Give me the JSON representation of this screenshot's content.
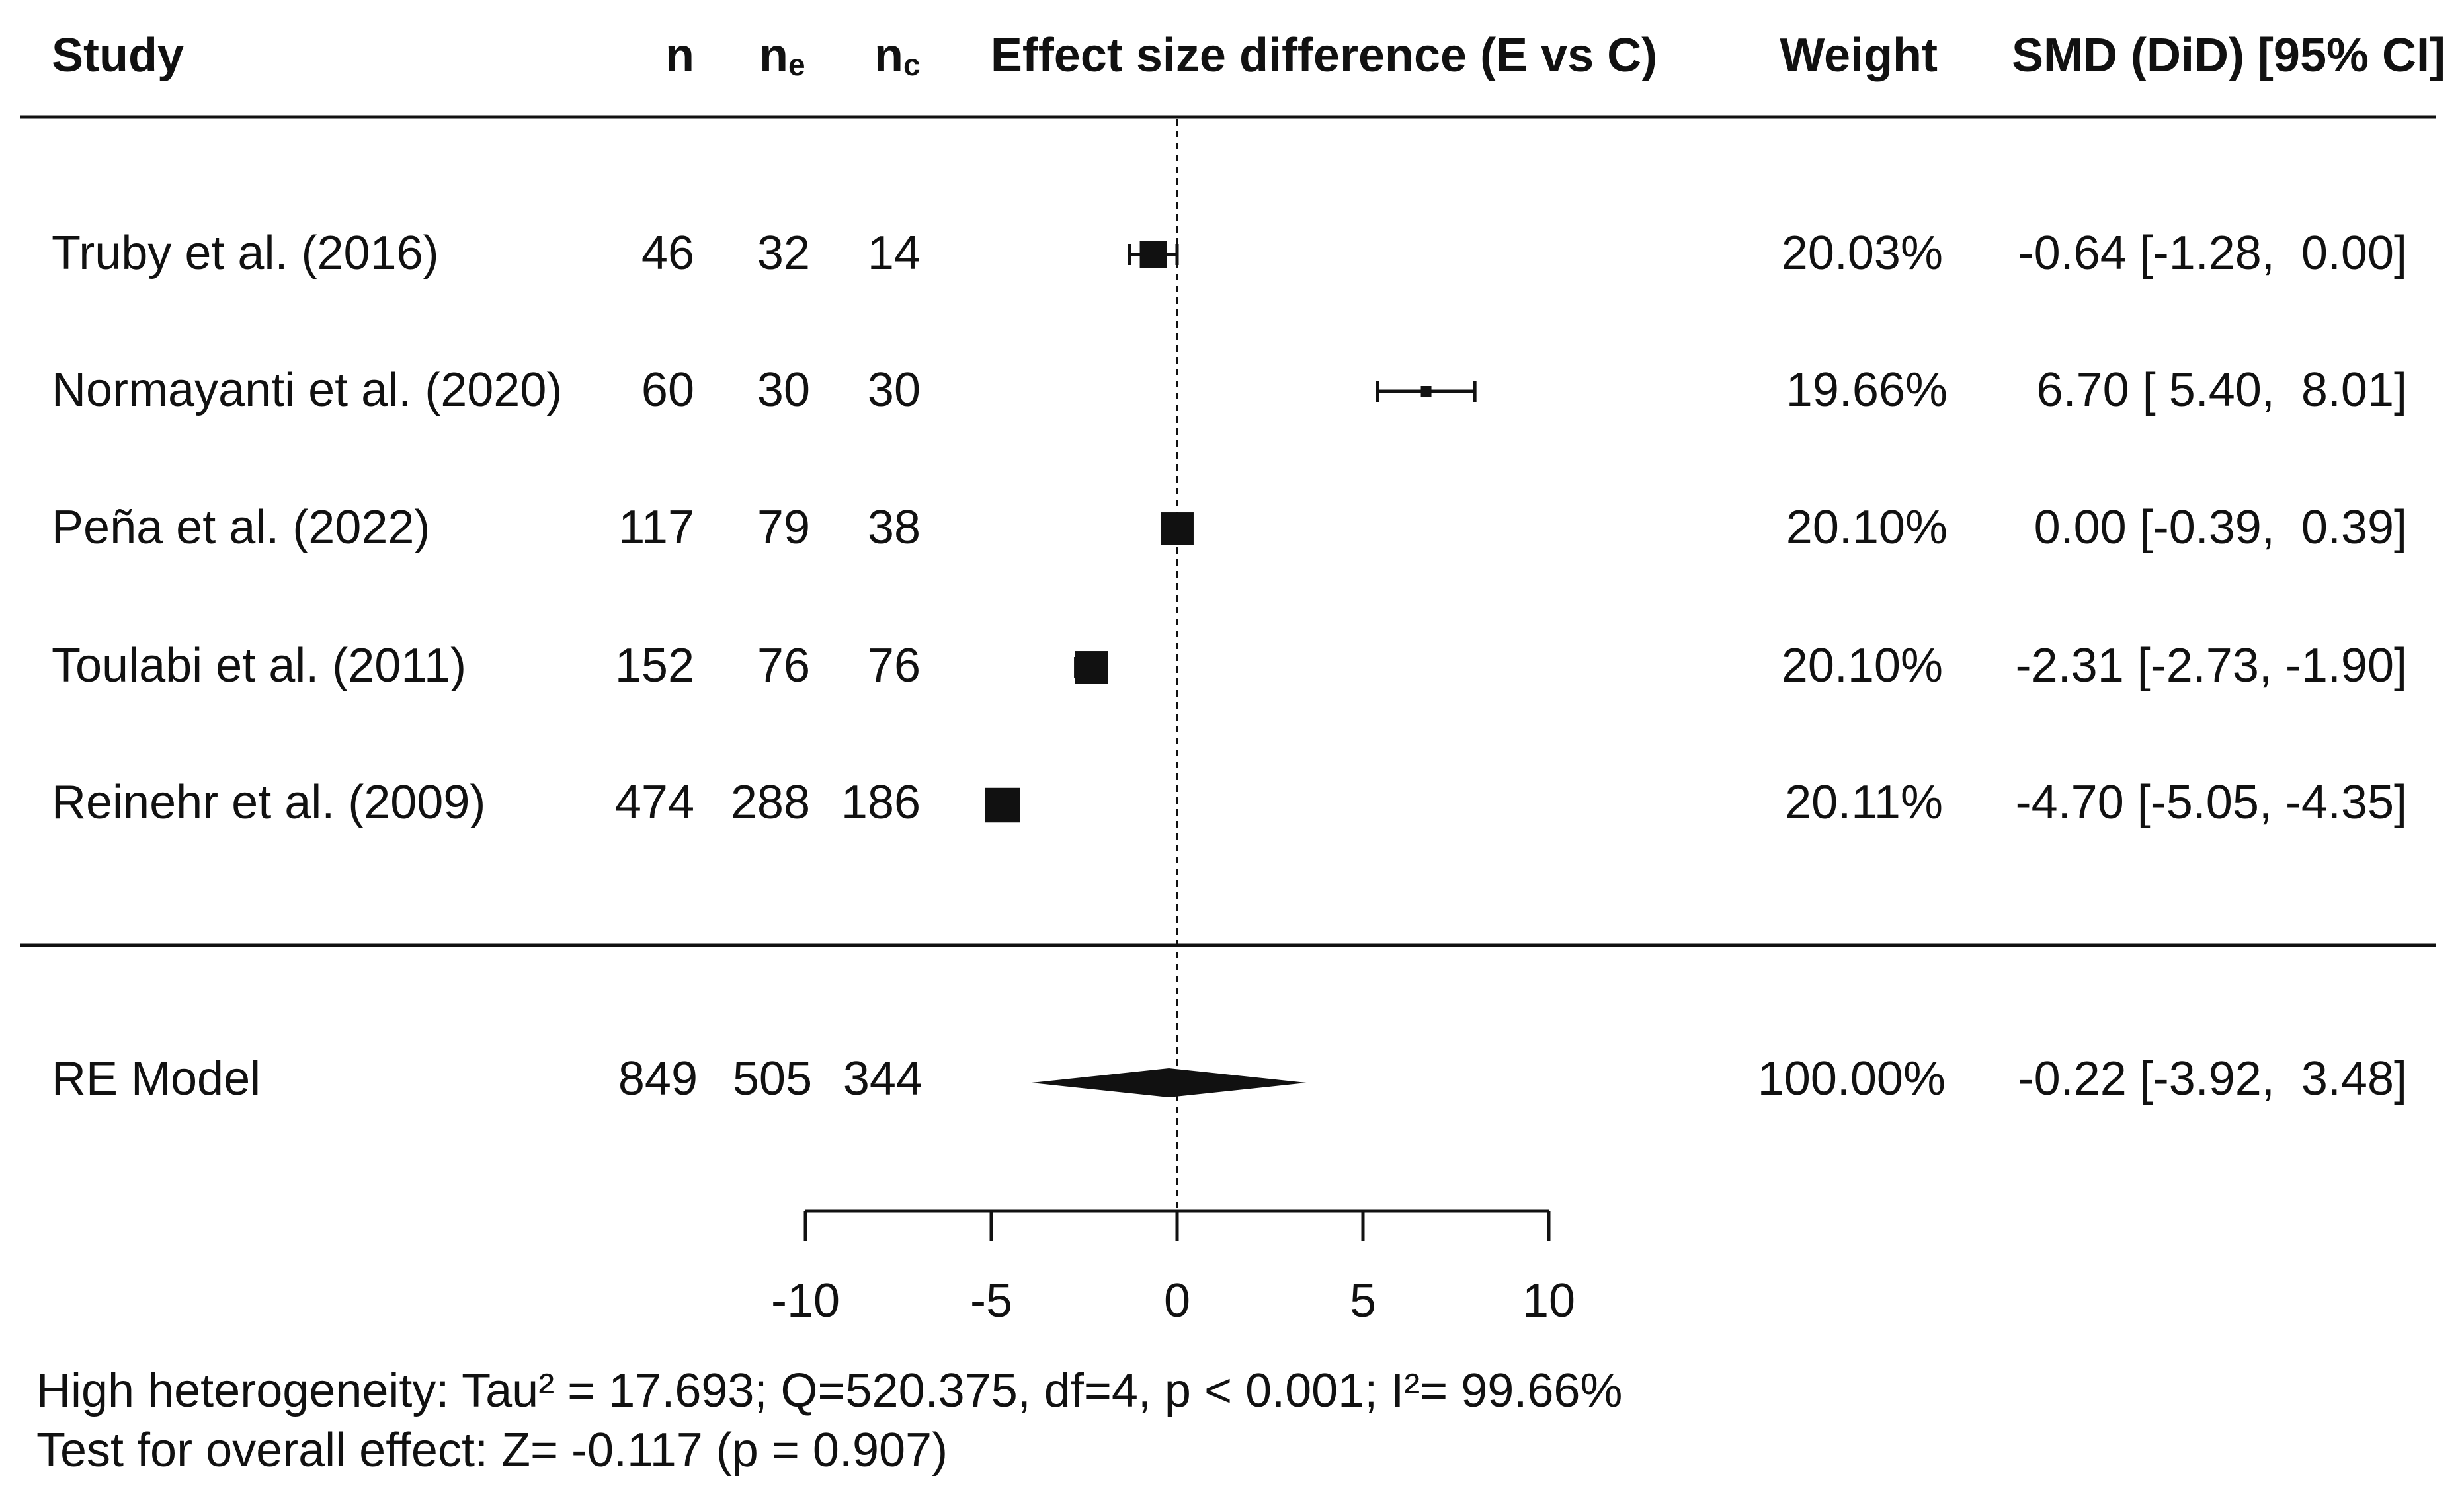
{
  "headers": {
    "study": "Study",
    "n": "n",
    "ne_main": "n",
    "ne_sub": "e",
    "nc_main": "n",
    "nc_sub": "c",
    "effect": "Effect size difference (E vs C)",
    "weight": "Weight",
    "smd": "SMD (DiD) [95% CI]"
  },
  "colors": {
    "ink": "#111111",
    "background": "#ffffff"
  },
  "chart_data": {
    "type": "forest",
    "title": "",
    "xlabel": "Effect size difference (E vs C)",
    "xlim": [
      -10,
      10
    ],
    "xticks": [
      -10,
      -5,
      0,
      5,
      10
    ],
    "xtick_labels": [
      "-10",
      "-5",
      "0",
      "5",
      "10"
    ],
    "reference_line": 0,
    "studies": [
      {
        "study": "Truby et al. (2016)",
        "n": "46",
        "ne": "32",
        "nc": "14",
        "weight": "20.03%",
        "ci_text": "-0.64 [-1.28,  0.00]",
        "est": -0.64,
        "lo": -1.28,
        "hi": 0.0,
        "weight_value": 20.03,
        "se_marker": 0.64
      },
      {
        "study": "Normayanti et al. (2020)",
        "n": "60",
        "ne": "30",
        "nc": "30",
        "weight": "19.66%",
        "ci_text": "6.70 [ 5.40,  8.01]",
        "est": 6.7,
        "lo": 5.4,
        "hi": 8.01,
        "weight_value": 19.66,
        "se_marker": 0.2
      },
      {
        "study": "Peña et al. (2022)",
        "n": "117",
        "ne": "79",
        "nc": "38",
        "weight": "20.10%",
        "ci_text": "0.00 [-0.39,  0.39]",
        "est": 0.0,
        "lo": -0.39,
        "hi": 0.39,
        "weight_value": 20.1,
        "se_marker": 0.78
      },
      {
        "study": "Toulabi et al. (2011)",
        "n": "152",
        "ne": "76",
        "nc": "76",
        "weight": "20.10%",
        "ci_text": "-2.31 [-2.73, -1.90]",
        "est": -2.31,
        "lo": -2.73,
        "hi": -1.9,
        "weight_value": 20.1,
        "se_marker": 0.78
      },
      {
        "study": "Reinehr et al. (2009)",
        "n": "474",
        "ne": "288",
        "nc": "186",
        "weight": "20.11%",
        "ci_text": "-4.70 [-5.05, -4.35]",
        "est": -4.7,
        "lo": -5.05,
        "hi": -4.35,
        "weight_value": 20.11,
        "se_marker": 0.82
      }
    ],
    "summary": {
      "label": "RE Model",
      "n": "849",
      "ne": "505",
      "nc": "344",
      "weight": "100.00%",
      "ci_text": "-0.22 [-3.92,  3.48]",
      "est": -0.22,
      "lo": -3.92,
      "hi": 3.48
    },
    "footnotes": [
      "High heterogeneity: Tau² = 17.693; Q=520.375, df=4, p < 0.001; I²= 99.66%",
      "Test for overall effect: Z= -0.117 (p = 0.907)"
    ]
  }
}
